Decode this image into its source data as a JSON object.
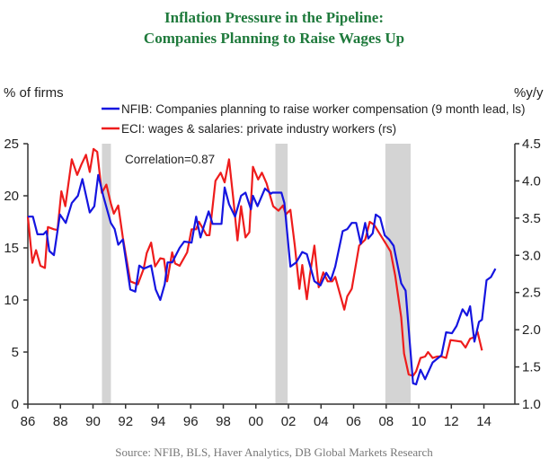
{
  "chart_data": {
    "type": "line",
    "title": [
      "Inflation Pressure in the Pipeline:",
      "Companies Planning to Raise Wages Up"
    ],
    "ylabel_left": "% of firms",
    "ylabel_right": "%y/y",
    "annotation": "Correlation=0.87",
    "source": "Source: NFIB, BLS, Haver Analytics, DB Global Markets Research",
    "xlim": [
      1986,
      2015.9
    ],
    "ylim_left": [
      0,
      25
    ],
    "ylim_right": [
      1.0,
      4.5
    ],
    "x_ticks": [
      1986,
      1988,
      1990,
      1992,
      1994,
      1996,
      1998,
      2000,
      2002,
      2004,
      2006,
      2008,
      2010,
      2012,
      2014
    ],
    "x_tick_labels": [
      "86",
      "88",
      "90",
      "92",
      "94",
      "96",
      "98",
      "00",
      "02",
      "04",
      "06",
      "08",
      "10",
      "12",
      "14"
    ],
    "y_ticks_left": [
      0,
      5,
      10,
      15,
      20,
      25
    ],
    "y_tick_labels_left": [
      "0",
      "5",
      "10",
      "15",
      "20",
      "25"
    ],
    "y_ticks_right": [
      1.0,
      1.5,
      2.0,
      2.5,
      3.0,
      3.5,
      4.0,
      4.5
    ],
    "y_tick_labels_right": [
      "1.0",
      "1.5",
      "2.0",
      "2.5",
      "3.0",
      "3.5",
      "4.0",
      "4.5"
    ],
    "recessions": [
      [
        1990.55,
        1991.1
      ],
      [
        2001.2,
        2001.95
      ],
      [
        2007.95,
        2009.5
      ]
    ],
    "series": [
      {
        "name": "NFIB: Companies planning to raise worker compensation (9 month lead, ls)",
        "axis": "left",
        "color": "#1515e0",
        "points": [
          [
            1986.0,
            18
          ],
          [
            1986.31,
            18
          ],
          [
            1986.59,
            16.3
          ],
          [
            1986.96,
            16.3
          ],
          [
            1987.14,
            16.6
          ],
          [
            1987.32,
            14.7
          ],
          [
            1987.6,
            14.3
          ],
          [
            1987.97,
            18.2
          ],
          [
            1988.33,
            17.4
          ],
          [
            1988.7,
            19.3
          ],
          [
            1989.07,
            20
          ],
          [
            1989.35,
            21.6
          ],
          [
            1989.8,
            18.4
          ],
          [
            1990.08,
            19
          ],
          [
            1990.32,
            22
          ],
          [
            1990.63,
            20
          ],
          [
            1991.09,
            17.4
          ],
          [
            1991.33,
            16.8
          ],
          [
            1991.55,
            15.3
          ],
          [
            1991.83,
            15.8
          ],
          [
            1992.29,
            11
          ],
          [
            1992.6,
            10.8
          ],
          [
            1992.84,
            13.3
          ],
          [
            1993.11,
            13
          ],
          [
            1993.57,
            13.3
          ],
          [
            1993.85,
            11
          ],
          [
            1994.13,
            10
          ],
          [
            1994.4,
            11.5
          ],
          [
            1994.58,
            13.6
          ],
          [
            1994.86,
            13.6
          ],
          [
            1995.32,
            15
          ],
          [
            1995.6,
            15.6
          ],
          [
            1996.05,
            15.5
          ],
          [
            1996.33,
            18
          ],
          [
            1996.6,
            16
          ],
          [
            1996.79,
            17
          ],
          [
            1997.1,
            18.5
          ],
          [
            1997.34,
            17.3
          ],
          [
            1997.89,
            17.3
          ],
          [
            1998.08,
            20.8
          ],
          [
            1998.35,
            19.2
          ],
          [
            1998.72,
            18
          ],
          [
            1999.09,
            20
          ],
          [
            1999.36,
            20.3
          ],
          [
            1999.7,
            18.7
          ],
          [
            1999.82,
            20
          ],
          [
            2000.1,
            19
          ],
          [
            2000.56,
            20.7
          ],
          [
            2000.93,
            20.2
          ],
          [
            2001.01,
            20.3
          ],
          [
            2001.57,
            20.3
          ],
          [
            2001.75,
            19.3
          ],
          [
            2002.12,
            13.2
          ],
          [
            2002.48,
            13.6
          ],
          [
            2002.85,
            14.6
          ],
          [
            2003.13,
            14.4
          ],
          [
            2003.59,
            11.8
          ],
          [
            2003.96,
            11.4
          ],
          [
            2004.32,
            12.6
          ],
          [
            2004.6,
            11.9
          ],
          [
            2004.87,
            13.2
          ],
          [
            2005.33,
            16.6
          ],
          [
            2005.61,
            16.8
          ],
          [
            2005.89,
            17.4
          ],
          [
            2006.16,
            17.4
          ],
          [
            2006.44,
            15.4
          ],
          [
            2006.71,
            17.4
          ],
          [
            2006.9,
            15.9
          ],
          [
            2007.17,
            16.4
          ],
          [
            2007.36,
            18.2
          ],
          [
            2007.63,
            17.9
          ],
          [
            2007.91,
            16.2
          ],
          [
            2008.18,
            15.8
          ],
          [
            2008.46,
            15.2
          ],
          [
            2008.92,
            11.6
          ],
          [
            2009.19,
            10.9
          ],
          [
            2009.65,
            2.0
          ],
          [
            2009.84,
            1.9
          ],
          [
            2010.11,
            3.3
          ],
          [
            2010.39,
            2.4
          ],
          [
            2010.85,
            4.0
          ],
          [
            2011.4,
            4.7
          ],
          [
            2011.68,
            6.9
          ],
          [
            2012.04,
            6.8
          ],
          [
            2012.32,
            7.5
          ],
          [
            2012.69,
            9.1
          ],
          [
            2012.96,
            8.5
          ],
          [
            2013.15,
            9.4
          ],
          [
            2013.42,
            6.0
          ],
          [
            2013.7,
            7.9
          ],
          [
            2013.88,
            8.1
          ],
          [
            2014.16,
            11.9
          ],
          [
            2014.43,
            12.2
          ],
          [
            2014.71,
            13.0
          ]
        ]
      },
      {
        "name": "ECI: wages & salaries: private industry workers (rs)",
        "axis": "right",
        "color": "#ee1c1c",
        "points": [
          [
            1986.0,
            3.52
          ],
          [
            1986.28,
            2.9
          ],
          [
            1986.5,
            3.07
          ],
          [
            1986.77,
            2.86
          ],
          [
            1987.05,
            2.83
          ],
          [
            1987.23,
            3.38
          ],
          [
            1987.6,
            3.35
          ],
          [
            1987.82,
            3.34
          ],
          [
            1988.06,
            3.86
          ],
          [
            1988.3,
            3.66
          ],
          [
            1988.7,
            4.29
          ],
          [
            1989.03,
            4.08
          ],
          [
            1989.29,
            4.22
          ],
          [
            1989.57,
            4.35
          ],
          [
            1989.8,
            4.12
          ],
          [
            1990.03,
            4.43
          ],
          [
            1990.26,
            4.39
          ],
          [
            1990.54,
            3.84
          ],
          [
            1990.82,
            3.95
          ],
          [
            1991.09,
            3.7
          ],
          [
            1991.28,
            3.56
          ],
          [
            1991.55,
            3.67
          ],
          [
            1991.83,
            3.24
          ],
          [
            1992.29,
            2.65
          ],
          [
            1992.75,
            2.61
          ],
          [
            1993.11,
            2.82
          ],
          [
            1993.3,
            3.03
          ],
          [
            1993.57,
            3.17
          ],
          [
            1993.81,
            2.85
          ],
          [
            1994.13,
            2.96
          ],
          [
            1994.36,
            2.95
          ],
          [
            1994.55,
            2.65
          ],
          [
            1994.86,
            3.04
          ],
          [
            1995.04,
            2.89
          ],
          [
            1995.32,
            2.86
          ],
          [
            1995.78,
            3.04
          ],
          [
            1996.05,
            3.35
          ],
          [
            1996.33,
            3.35
          ],
          [
            1996.51,
            3.45
          ],
          [
            1996.97,
            3.27
          ],
          [
            1997.15,
            3.27
          ],
          [
            1997.52,
            4.0
          ],
          [
            1997.84,
            4.11
          ],
          [
            1998.08,
            3.98
          ],
          [
            1998.35,
            4.29
          ],
          [
            1998.63,
            3.73
          ],
          [
            1998.87,
            3.2
          ],
          [
            1999.09,
            3.66
          ],
          [
            1999.36,
            3.24
          ],
          [
            1999.6,
            3.31
          ],
          [
            1999.82,
            4.19
          ],
          [
            2000.14,
            4.02
          ],
          [
            2000.37,
            4.11
          ],
          [
            2000.65,
            3.97
          ],
          [
            2001.06,
            3.66
          ],
          [
            2001.39,
            3.6
          ],
          [
            2001.66,
            3.67
          ],
          [
            2001.84,
            3.55
          ],
          [
            2002.12,
            3.61
          ],
          [
            2002.39,
            3.13
          ],
          [
            2002.67,
            2.55
          ],
          [
            2002.85,
            2.87
          ],
          [
            2003.13,
            2.41
          ],
          [
            2003.31,
            2.73
          ],
          [
            2003.59,
            3.13
          ],
          [
            2003.86,
            2.57
          ],
          [
            2004.14,
            2.77
          ],
          [
            2004.41,
            2.65
          ],
          [
            2004.69,
            2.65
          ],
          [
            2004.87,
            2.71
          ],
          [
            2005.43,
            2.27
          ],
          [
            2005.61,
            2.45
          ],
          [
            2005.89,
            2.55
          ],
          [
            2006.34,
            3.13
          ],
          [
            2006.71,
            3.21
          ],
          [
            2006.99,
            3.45
          ],
          [
            2007.26,
            3.41
          ],
          [
            2007.54,
            3.31
          ],
          [
            2008.0,
            3.15
          ],
          [
            2008.27,
            3.05
          ],
          [
            2008.55,
            2.73
          ],
          [
            2008.92,
            2.17
          ],
          [
            2009.1,
            1.68
          ],
          [
            2009.38,
            1.4
          ],
          [
            2009.65,
            1.38
          ],
          [
            2009.84,
            1.44
          ],
          [
            2010.11,
            1.62
          ],
          [
            2010.39,
            1.64
          ],
          [
            2010.57,
            1.7
          ],
          [
            2010.85,
            1.62
          ],
          [
            2011.12,
            1.64
          ],
          [
            2011.4,
            1.64
          ],
          [
            2011.68,
            1.62
          ],
          [
            2011.95,
            1.86
          ],
          [
            2012.6,
            1.84
          ],
          [
            2012.87,
            1.76
          ],
          [
            2013.15,
            1.88
          ],
          [
            2013.42,
            1.9
          ],
          [
            2013.61,
            1.97
          ],
          [
            2013.88,
            1.72
          ]
        ]
      }
    ]
  }
}
